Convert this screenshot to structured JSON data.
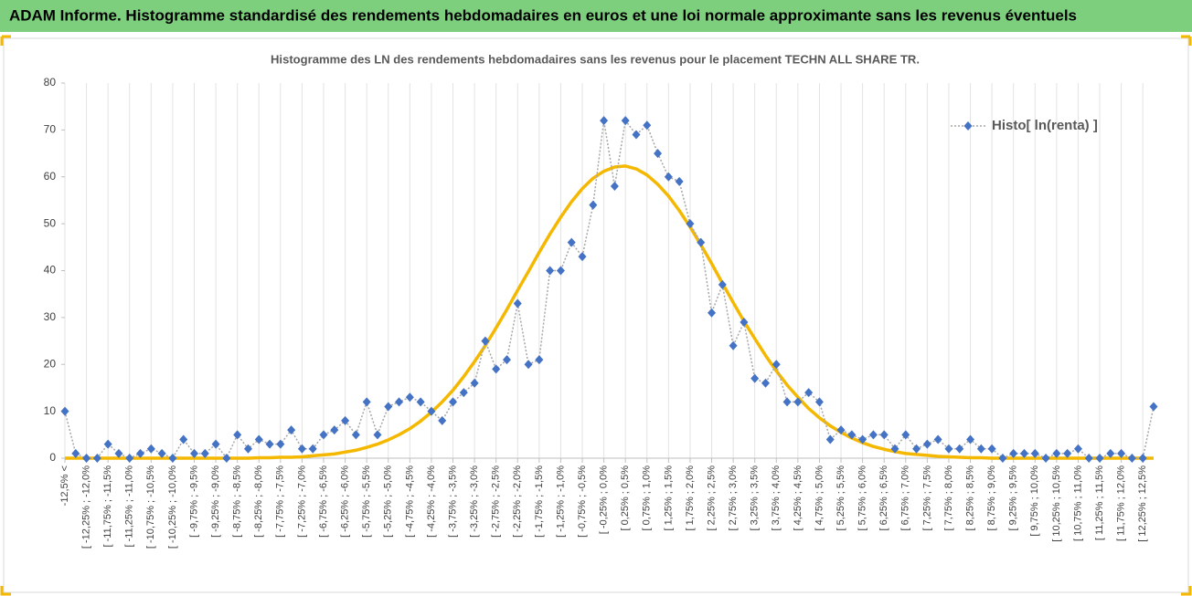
{
  "header": {
    "title": "ADAM Informe. Histogramme standardisé des rendements hebdomadaires en euros et une loi normale approximante sans les revenus éventuels"
  },
  "chart_data": {
    "type": "line",
    "title": "Histogramme des LN des rendements hebdomadaires sans les revenus pour le placement TECHN ALL SHARE TR.",
    "categories": [
      "-12,5% <",
      null,
      "[ -12,25% ; -12,0%",
      null,
      "[ -11,75% ; -11,5%",
      null,
      "[ -11,25% ; -11,0%",
      null,
      "[ -10,75% ; -10,5%",
      null,
      "[ -10,25% ; -10,0%",
      null,
      "[ -9,75% ; -9,5%",
      null,
      "[ -9,25% ; -9,0%",
      null,
      "[ -8,75% ; -8,5%",
      null,
      "[ -8,25% ; -8,0%",
      null,
      "[ -7,75% ; -7,5%",
      null,
      "[ -7,25% ; -7,0%",
      null,
      "[ -6,75% ; -6,5%",
      null,
      "[ -6,25% ; -6,0%",
      null,
      "[ -5,75% ; -5,5%",
      null,
      "[ -5,25% ; -5,0%",
      null,
      "[ -4,75% ; -4,5%",
      null,
      "[ -4,25% ; -4,0%",
      null,
      "[ -3,75% ; -3,5%",
      null,
      "[ -3,25% ; -3,0%",
      null,
      "[ -2,75% ; -2,5%",
      null,
      "[ -2,25% ; -2,0%",
      null,
      "[ -1,75% ; -1,5%",
      null,
      "[ -1,25% ; -1,0%",
      null,
      "[ -0,75% ; -0,5%",
      null,
      "[ -0,25% ; 0,0%",
      null,
      "[ 0,25% ; 0,5%",
      null,
      "[ 0,75% ; 1,0%",
      null,
      "[ 1,25% ; 1,5%",
      null,
      "[ 1,75% ; 2,0%",
      null,
      "[ 2,25% ; 2,5%",
      null,
      "[ 2,75% ; 3,0%",
      null,
      "[ 3,25% ; 3,5%",
      null,
      "[ 3,75% ; 4,0%",
      null,
      "[ 4,25% ; 4,5%",
      null,
      "[ 4,75% ; 5,0%",
      null,
      "[ 5,25% ; 5,5%",
      null,
      "[ 5,75% ; 6,0%",
      null,
      "[ 6,25% ; 6,5%",
      null,
      "[ 6,75% ; 7,0%",
      null,
      "[ 7,25% ; 7,5%",
      null,
      "[ 7,75% ; 8,0%",
      null,
      "[ 8,25% ; 8,5%",
      null,
      "[ 8,75% ; 9,0%",
      null,
      "[ 9,25% ; 9,5%",
      null,
      "[ 9,75% ; 10,0%",
      null,
      "[ 10,25% ; 10,5%",
      null,
      "[ 10,75% ; 11,0%",
      null,
      "[ 11,25% ; 11,5%",
      null,
      "[ 11,75% ; 12,0%",
      null,
      "[ 12,25% ; 12,5%",
      null
    ],
    "series": [
      {
        "name": "Histo[ ln(renta) ]",
        "color": "#4472c4",
        "values": [
          10,
          1,
          0,
          0,
          3,
          1,
          0,
          1,
          2,
          1,
          0,
          4,
          1,
          1,
          3,
          0,
          5,
          2,
          4,
          3,
          3,
          6,
          2,
          2,
          5,
          6,
          8,
          5,
          12,
          5,
          11,
          12,
          13,
          12,
          10,
          8,
          12,
          14,
          16,
          25,
          19,
          21,
          33,
          20,
          21,
          40,
          40,
          46,
          43,
          54,
          72,
          58,
          72,
          69,
          71,
          65,
          60,
          59,
          50,
          46,
          31,
          37,
          24,
          29,
          17,
          16,
          20,
          12,
          12,
          14,
          12,
          4,
          6,
          5,
          4,
          5,
          5,
          2,
          5,
          2,
          3,
          4,
          2,
          2,
          4,
          2,
          2,
          0,
          1,
          1,
          1,
          0,
          1,
          1,
          2,
          0,
          0,
          1,
          1,
          0,
          0,
          11
        ]
      },
      {
        "color": "#f5b800",
        "values": [
          0,
          0,
          0,
          0,
          0,
          0,
          0,
          0,
          0,
          0,
          0,
          0,
          0,
          0,
          0,
          0,
          0,
          0,
          0.1,
          0.1,
          0.2,
          0.2,
          0.3,
          0.5,
          0.7,
          0.9,
          1.3,
          1.7,
          2.3,
          3.0,
          3.9,
          5.0,
          6.3,
          7.9,
          9.8,
          12.0,
          14.5,
          17.4,
          20.6,
          24.0,
          27.8,
          31.7,
          35.8,
          39.8,
          43.9,
          47.8,
          51.4,
          54.7,
          57.5,
          59.7,
          61.2,
          62.1,
          62.3,
          61.7,
          60.4,
          58.4,
          55.9,
          52.8,
          49.3,
          45.5,
          41.5,
          37.3,
          33.2,
          29.2,
          25.5,
          21.9,
          18.6,
          15.6,
          13.0,
          10.6,
          8.6,
          6.9,
          5.5,
          4.3,
          3.3,
          2.5,
          1.9,
          1.4,
          1.0,
          0.8,
          0.6,
          0.4,
          0.3,
          0.2,
          0.1,
          0.1,
          0,
          0,
          0,
          0,
          0,
          0,
          0,
          0,
          0,
          0,
          0,
          0,
          0,
          0,
          0,
          0
        ]
      }
    ],
    "ylim": [
      0,
      80
    ],
    "yticks": [
      0,
      10,
      20,
      30,
      40,
      50,
      60,
      70,
      80
    ],
    "legend": "upper right"
  }
}
